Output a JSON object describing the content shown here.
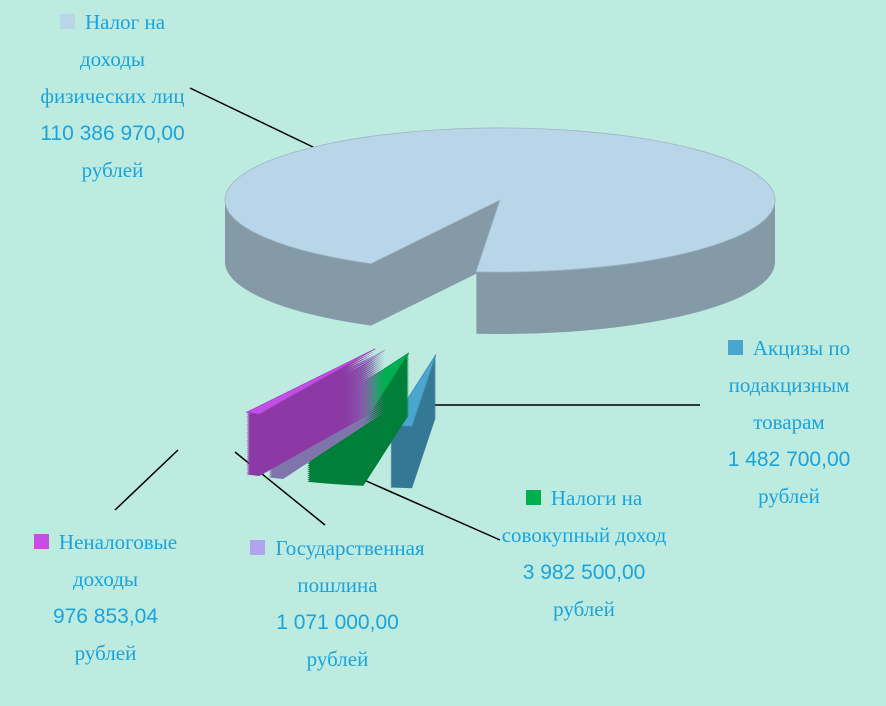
{
  "chart_data": {
    "type": "pie",
    "categories": [
      "Налог на доходы физических лиц",
      "Акцизы по подакцизным товарам",
      "Налоги на совокупный доход",
      "Государственная пошлина",
      "Неналоговые доходы"
    ],
    "values": [
      110386970.0,
      1482700.0,
      3982500.0,
      1071000.0,
      976853.04
    ],
    "value_labels": [
      "110 386 970,00",
      "1 482 700,00",
      "3 982 500,00",
      "1 071 000,00",
      "976 853,04"
    ],
    "unit_label": "рублей",
    "colors": [
      "#b9d6e8",
      "#4aa6cf",
      "#00b050",
      "#b0a3ef",
      "#c24fe6"
    ]
  }
}
